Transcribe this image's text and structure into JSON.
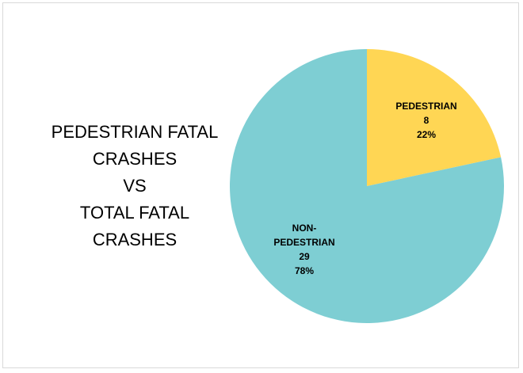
{
  "chart_data": {
    "type": "pie",
    "title_lines": [
      "PEDESTRIAN FATAL",
      "CRASHES",
      "VS",
      "TOTAL FATAL",
      "CRASHES"
    ],
    "slices": [
      {
        "label_lines": [
          "PEDESTRIAN"
        ],
        "value": 8,
        "percent": "22%",
        "color": "#FFD654"
      },
      {
        "label_lines": [
          "NON-",
          "PEDESTRIAN"
        ],
        "value": 29,
        "percent": "78%",
        "color": "#7ECED3"
      }
    ],
    "start_angle_deg": 0,
    "direction": "clockwise"
  }
}
